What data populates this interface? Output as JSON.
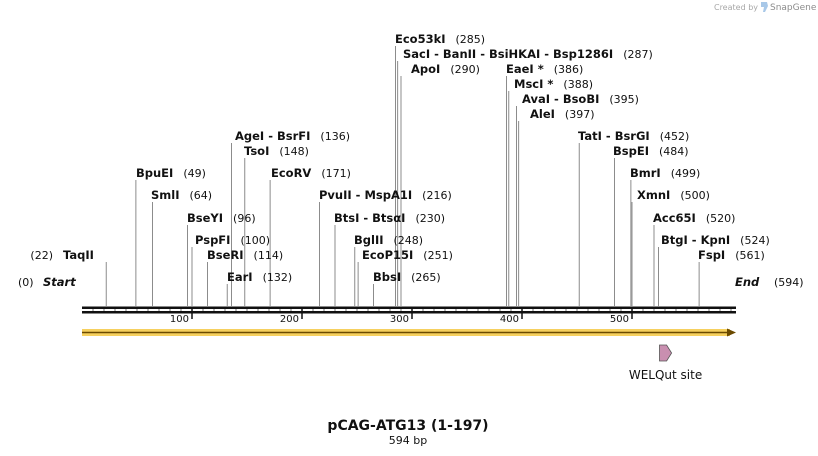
{
  "credit": {
    "created_by": "Created by",
    "brand": "SnapGene"
  },
  "sequence": {
    "name": "pCAG-ATG13 (1-197)",
    "length_label": "594 bp",
    "length": 594
  },
  "ends": {
    "start": {
      "label": "Start",
      "pos_label": "(0)"
    },
    "end": {
      "label": "End",
      "pos_label": "(594)"
    }
  },
  "ruler": {
    "ticks": [
      {
        "label": "100",
        "value": 100
      },
      {
        "label": "200",
        "value": 200
      },
      {
        "label": "300",
        "value": 300
      },
      {
        "label": "400",
        "value": 400
      },
      {
        "label": "500",
        "value": 500
      }
    ]
  },
  "sites": [
    {
      "segments": [
        {
          "text": "TaqII"
        }
      ],
      "pos_label": "(22)",
      "position": 22
    },
    {
      "segments": [
        {
          "text": "BpuEI"
        }
      ],
      "pos_label": "(49)",
      "position": 49
    },
    {
      "segments": [
        {
          "text": "SmlI"
        }
      ],
      "pos_label": "(64)",
      "position": 64
    },
    {
      "segments": [
        {
          "text": "BseYI"
        }
      ],
      "pos_label": "(96)",
      "position": 96
    },
    {
      "segments": [
        {
          "text": "PspFI"
        }
      ],
      "pos_label": "(100)",
      "position": 100
    },
    {
      "segments": [
        {
          "text": "BseRI"
        }
      ],
      "pos_label": "(114)",
      "position": 114
    },
    {
      "segments": [
        {
          "text": "EarI"
        }
      ],
      "pos_label": "(132)",
      "position": 132
    },
    {
      "segments": [
        {
          "text": "AgeI"
        },
        {
          "text": "BsrFI"
        }
      ],
      "pos_label": "(136)",
      "position": 136
    },
    {
      "segments": [
        {
          "text": "TsoI"
        }
      ],
      "pos_label": "(148)",
      "position": 148
    },
    {
      "segments": [
        {
          "text": "EcoRV"
        }
      ],
      "pos_label": "(171)",
      "position": 171
    },
    {
      "segments": [
        {
          "text": "PvuII"
        },
        {
          "text": "MspA1I"
        }
      ],
      "pos_label": "(216)",
      "position": 216
    },
    {
      "segments": [
        {
          "text": "BtsI"
        },
        {
          "text": "BtsαI"
        }
      ],
      "pos_label": "(230)",
      "position": 230
    },
    {
      "segments": [
        {
          "text": "BglII"
        }
      ],
      "pos_label": "(248)",
      "position": 248
    },
    {
      "segments": [
        {
          "text": "EcoP15I"
        }
      ],
      "pos_label": "(251)",
      "position": 251
    },
    {
      "segments": [
        {
          "text": "BbsI"
        }
      ],
      "pos_label": "(265)",
      "position": 265
    },
    {
      "segments": [
        {
          "text": "Eco53kI"
        }
      ],
      "pos_label": "(285)",
      "position": 285
    },
    {
      "segments": [
        {
          "text": "SacI"
        },
        {
          "text": "BanII"
        },
        {
          "text": "BsiHKAI"
        },
        {
          "text": "Bsp1286I"
        }
      ],
      "pos_label": "(287)",
      "position": 287
    },
    {
      "segments": [
        {
          "text": "ApoI"
        }
      ],
      "pos_label": "(290)",
      "position": 290
    },
    {
      "segments": [
        {
          "text": "EaeI *"
        }
      ],
      "pos_label": "(386)",
      "position": 386
    },
    {
      "segments": [
        {
          "text": "MscI *"
        }
      ],
      "pos_label": "(388)",
      "position": 388
    },
    {
      "segments": [
        {
          "text": "AvaI"
        },
        {
          "text": "BsoBI"
        }
      ],
      "pos_label": "(395)",
      "position": 395
    },
    {
      "segments": [
        {
          "text": "AleI"
        }
      ],
      "pos_label": "(397)",
      "position": 397
    },
    {
      "segments": [
        {
          "text": "TatI"
        },
        {
          "text": "BsrGI"
        }
      ],
      "pos_label": "(452)",
      "position": 452
    },
    {
      "segments": [
        {
          "text": "BspEI"
        }
      ],
      "pos_label": "(484)",
      "position": 484
    },
    {
      "segments": [
        {
          "text": "BmrI"
        }
      ],
      "pos_label": "(499)",
      "position": 499
    },
    {
      "segments": [
        {
          "text": "XmnI"
        }
      ],
      "pos_label": "(500)",
      "position": 500
    },
    {
      "segments": [
        {
          "text": "Acc65I"
        }
      ],
      "pos_label": "(520)",
      "position": 520
    },
    {
      "segments": [
        {
          "text": "BtgI"
        },
        {
          "text": "KpnI"
        }
      ],
      "pos_label": "(524)",
      "position": 524
    },
    {
      "segments": [
        {
          "text": "FspI"
        }
      ],
      "pos_label": "(561)",
      "position": 561
    }
  ],
  "features": [
    {
      "name": "WELQut site",
      "start": 525,
      "end": 536,
      "color": "#c98fb0"
    }
  ],
  "colors": {
    "backbone": "#111111",
    "feature_bar": "#f5c842",
    "line": "#6f6f6f"
  }
}
